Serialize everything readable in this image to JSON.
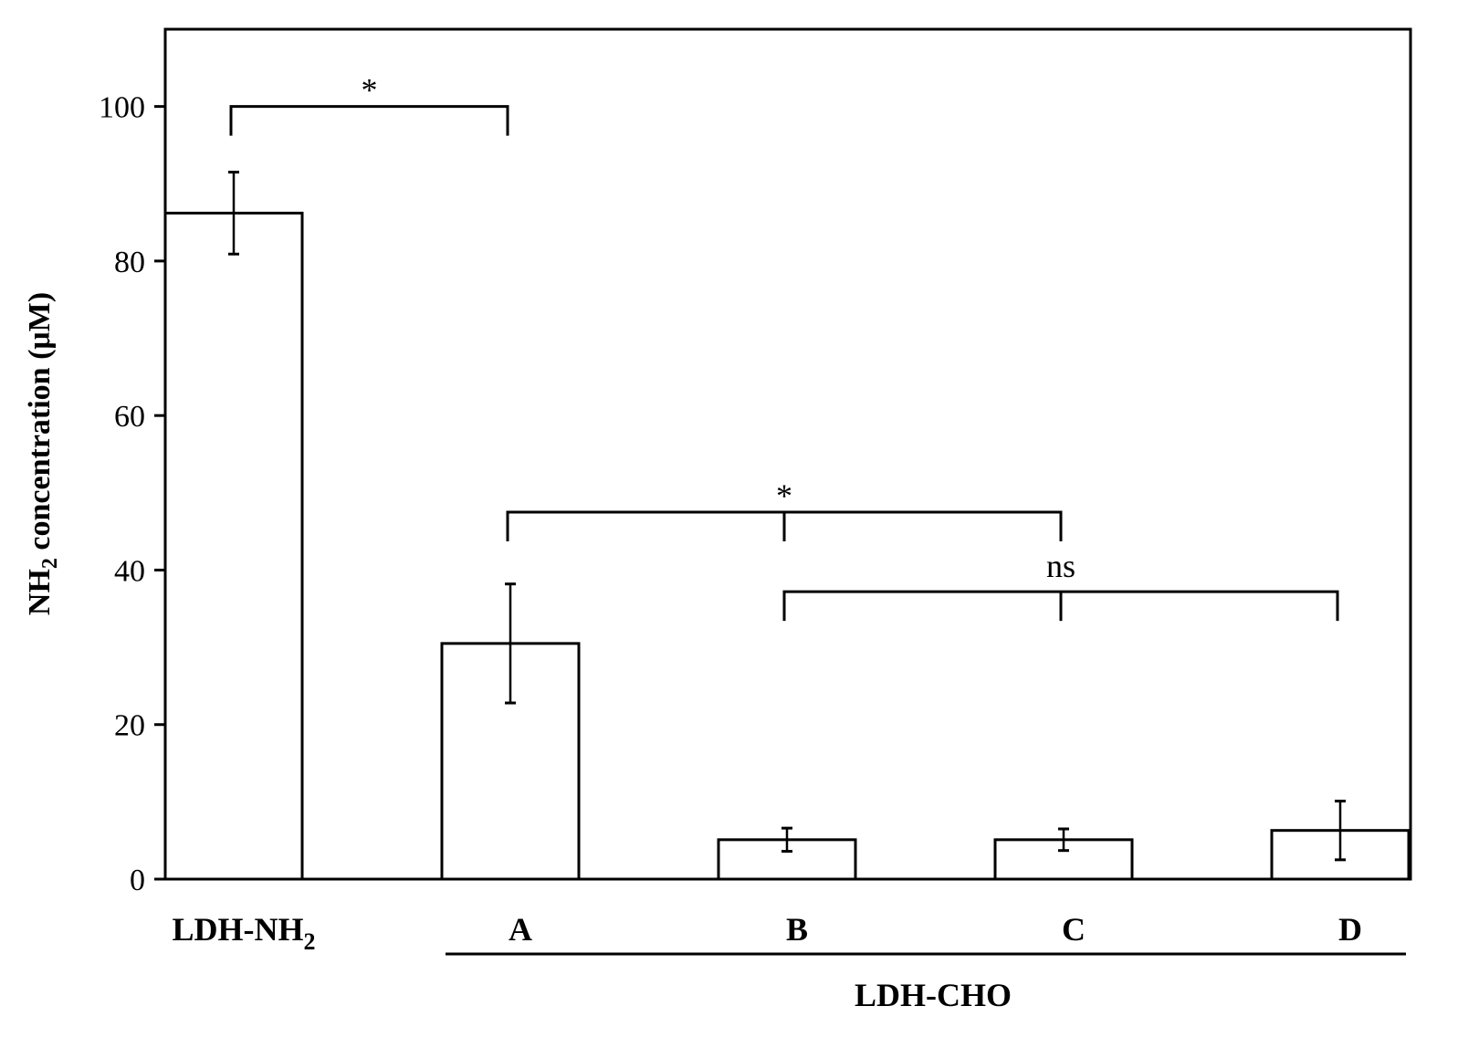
{
  "chart_data": {
    "type": "bar",
    "categories": [
      "LDH-NH",
      "A",
      "B",
      "C",
      "D"
    ],
    "category_subscripts": [
      "2",
      "",
      "",
      "",
      ""
    ],
    "values": [
      86.2,
      30.5,
      5.1,
      5.1,
      6.3
    ],
    "errors": [
      5.3,
      7.7,
      1.5,
      1.4,
      3.8
    ],
    "ylabel": "NH",
    "ylabel_subscript": "2",
    "ylabel_suffix": " concentration (μM)",
    "ylim": [
      0,
      110
    ],
    "yticks": [
      0,
      20,
      40,
      60,
      80,
      100
    ],
    "group_label": "LDH-CHO",
    "grid": false,
    "bar_fill": "#ffffff",
    "bar_stroke": "#000000",
    "significance": [
      {
        "label": "*",
        "from": 0,
        "to": 1,
        "y": 100
      },
      {
        "label": "*",
        "from": 1,
        "to": 3,
        "y": 47.5
      },
      {
        "label": "ns",
        "from": 2,
        "to": 4,
        "y": 37.2
      }
    ]
  }
}
